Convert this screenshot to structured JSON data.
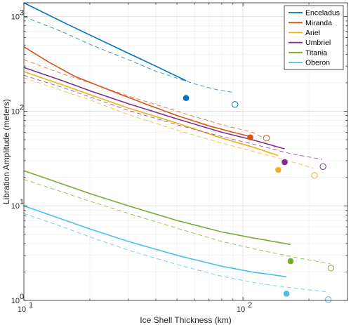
{
  "chart_data": {
    "type": "line",
    "xlabel": "Ice Shell Thickness (km)",
    "ylabel": "Libration Amplitude (meters)",
    "xscale": "log",
    "yscale": "log",
    "xlim": [
      10,
      300
    ],
    "ylim": [
      1,
      1400
    ],
    "grid": true,
    "legend_position": "top-right",
    "x_ticks": [
      {
        "value": 10,
        "base": "10",
        "exp": "1"
      },
      {
        "value": 100,
        "base": "10",
        "exp": "2"
      }
    ],
    "y_ticks": [
      {
        "value": 1,
        "base": "10",
        "exp": "0"
      },
      {
        "value": 10,
        "base": "10",
        "exp": "1"
      },
      {
        "value": 100,
        "base": "10",
        "exp": "2"
      },
      {
        "value": 1000,
        "base": "10",
        "exp": "3"
      }
    ],
    "series": [
      {
        "name": "Enceladus",
        "color": "#0072BD",
        "solid": [
          [
            10,
            1400
          ],
          [
            15,
            880
          ],
          [
            20,
            640
          ],
          [
            30,
            410
          ],
          [
            40,
            300
          ],
          [
            55,
            210
          ]
        ],
        "dashed": [
          [
            10,
            1000
          ],
          [
            15,
            690
          ],
          [
            20,
            510
          ],
          [
            30,
            350
          ],
          [
            40,
            265
          ],
          [
            60,
            195
          ],
          [
            75,
            170
          ],
          [
            90,
            158
          ]
        ],
        "marker_filled": [
          55,
          138
        ],
        "marker_open": [
          92,
          118
        ]
      },
      {
        "name": "Miranda",
        "color": "#D95319",
        "solid": [
          [
            10,
            480
          ],
          [
            13,
            330
          ],
          [
            17,
            235
          ],
          [
            25,
            165
          ],
          [
            35,
            122
          ],
          [
            50,
            90
          ],
          [
            70,
            70
          ],
          [
            90,
            60
          ],
          [
            108,
            54
          ]
        ],
        "dashed": [
          [
            10,
            350
          ],
          [
            15,
            248
          ],
          [
            20,
            200
          ],
          [
            30,
            145
          ],
          [
            50,
            100
          ],
          [
            80,
            72
          ],
          [
            110,
            60
          ],
          [
            125,
            52
          ]
        ],
        "marker_filled": [
          108,
          53
        ],
        "marker_open": [
          128,
          52
        ]
      },
      {
        "name": "Ariel",
        "color": "#EDB120",
        "solid": [
          [
            10,
            262
          ],
          [
            15,
            190
          ],
          [
            20,
            150
          ],
          [
            30,
            108
          ],
          [
            50,
            75
          ],
          [
            80,
            52
          ],
          [
            110,
            42
          ],
          [
            145,
            34
          ]
        ],
        "dashed": [
          [
            10,
            225
          ],
          [
            15,
            165
          ],
          [
            20,
            132
          ],
          [
            30,
            92
          ],
          [
            50,
            63
          ],
          [
            80,
            46
          ],
          [
            120,
            36
          ],
          [
            160,
            30
          ],
          [
            210,
            25
          ]
        ],
        "marker_filled": [
          145,
          24
        ],
        "marker_open": [
          212,
          21
        ]
      },
      {
        "name": "Umbriel",
        "color": "#7E2F8E",
        "solid": [
          [
            10,
            290
          ],
          [
            15,
            210
          ],
          [
            20,
            165
          ],
          [
            30,
            120
          ],
          [
            50,
            83
          ],
          [
            80,
            60
          ],
          [
            110,
            50
          ],
          [
            155,
            40
          ]
        ],
        "dashed": [
          [
            10,
            240
          ],
          [
            15,
            178
          ],
          [
            20,
            142
          ],
          [
            30,
            102
          ],
          [
            50,
            72
          ],
          [
            80,
            54
          ],
          [
            120,
            43
          ],
          [
            170,
            35
          ],
          [
            230,
            31
          ]
        ],
        "marker_filled": [
          155,
          29
        ],
        "marker_open": [
          232,
          26
        ]
      },
      {
        "name": "Titania",
        "color": "#77AC30",
        "solid": [
          [
            10,
            23.5
          ],
          [
            15,
            17
          ],
          [
            20,
            13.5
          ],
          [
            30,
            10
          ],
          [
            50,
            7
          ],
          [
            80,
            5.3
          ],
          [
            110,
            4.6
          ],
          [
            165,
            3.9
          ]
        ],
        "dashed": [
          [
            10,
            19
          ],
          [
            15,
            14
          ],
          [
            20,
            11.2
          ],
          [
            30,
            8.3
          ],
          [
            50,
            5.8
          ],
          [
            80,
            4.2
          ],
          [
            120,
            3.4
          ],
          [
            180,
            2.8
          ],
          [
            250,
            2.45
          ]
        ],
        "marker_filled": [
          165,
          2.6
        ],
        "marker_open": [
          252,
          2.2
        ]
      },
      {
        "name": "Oberon",
        "color": "#4DBEEE",
        "solid": [
          [
            10,
            10
          ],
          [
            15,
            7.2
          ],
          [
            20,
            5.7
          ],
          [
            30,
            4.2
          ],
          [
            50,
            3.0
          ],
          [
            80,
            2.3
          ],
          [
            110,
            2.0
          ],
          [
            158,
            1.78
          ]
        ],
        "dashed": [
          [
            10,
            8.3
          ],
          [
            15,
            6.0
          ],
          [
            20,
            4.7
          ],
          [
            30,
            3.4
          ],
          [
            50,
            2.4
          ],
          [
            80,
            1.8
          ],
          [
            120,
            1.5
          ],
          [
            180,
            1.33
          ],
          [
            245,
            1.23
          ]
        ],
        "marker_filled": [
          158,
          1.18
        ],
        "marker_open": [
          245,
          1.02
        ]
      }
    ]
  }
}
